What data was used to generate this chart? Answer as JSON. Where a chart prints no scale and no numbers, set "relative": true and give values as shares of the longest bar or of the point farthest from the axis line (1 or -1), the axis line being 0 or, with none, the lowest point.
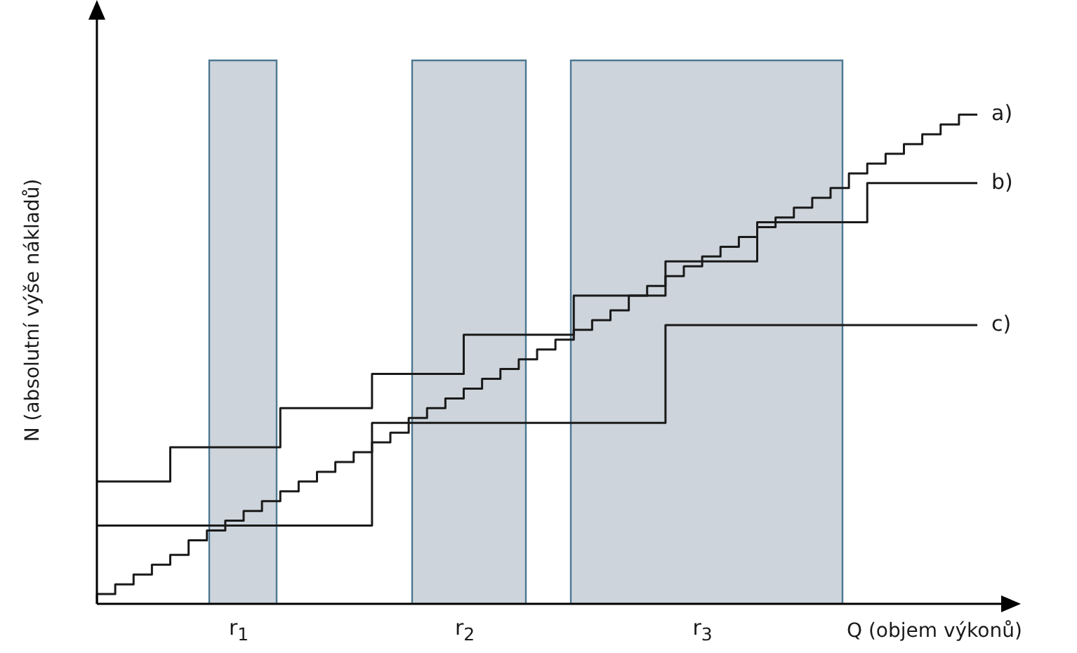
{
  "chart_data": {
    "type": "step",
    "relative": true,
    "xlabel": "Q (objem výkonů)",
    "ylabel": "N (absolutní výše nákladů)",
    "legend": false,
    "marker": "none",
    "line_style": "solid",
    "categories": [
      null,
      null,
      null,
      null,
      null,
      null,
      null,
      null,
      null,
      null,
      null,
      null,
      null,
      null,
      null,
      null,
      null,
      null,
      null,
      null,
      null,
      null,
      null,
      null,
      null,
      null,
      null,
      null,
      null,
      null,
      null,
      null,
      null,
      null,
      null,
      null,
      null,
      null,
      null,
      null,
      null,
      null,
      null,
      null,
      null,
      null,
      null,
      null,
      null
    ],
    "series": [
      {
        "name": "a)",
        "color": "#1a1a1a",
        "values": [
          0,
          0.02,
          0.04,
          0.06,
          0.08,
          0.1,
          0.13,
          0.15,
          0.17,
          0.19,
          0.21,
          0.23,
          0.25,
          0.27,
          0.29,
          0.31,
          0.33,
          0.35,
          0.38,
          0.4,
          0.42,
          0.44,
          0.46,
          0.48,
          0.5,
          0.52,
          0.54,
          0.56,
          0.58,
          0.6,
          0.63,
          0.65,
          0.67,
          0.69,
          0.71,
          0.73,
          0.75,
          0.77,
          0.79,
          0.81,
          0.83,
          0.85,
          0.88,
          0.9,
          0.92,
          0.94,
          0.96,
          0.98,
          1
        ]
      },
      {
        "name": "b)",
        "color": "#1a1a1a",
        "values": [
          0.25,
          0.25,
          0.25,
          0.25,
          0.25,
          0.32,
          0.32,
          0.32,
          0.32,
          0.32,
          0.32,
          0.4,
          0.4,
          0.4,
          0.4,
          0.4,
          0.47,
          0.47,
          0.47,
          0.47,
          0.47,
          0.55,
          0.55,
          0.55,
          0.55,
          0.55,
          0.55,
          0.63,
          0.63,
          0.63,
          0.63,
          0.63,
          0.7,
          0.7,
          0.7,
          0.7,
          0.7,
          0.78,
          0.78,
          0.78,
          0.78,
          0.78,
          0.78,
          0.86,
          0.86,
          0.86,
          0.86,
          0.86,
          0.86
        ]
      },
      {
        "name": "c)",
        "color": "#1a1a1a",
        "values": [
          0.16,
          0.16,
          0.16,
          0.16,
          0.16,
          0.16,
          0.16,
          0.16,
          0.16,
          0.16,
          0.16,
          0.16,
          0.16,
          0.16,
          0.16,
          0.16,
          0.37,
          0.37,
          0.37,
          0.37,
          0.37,
          0.37,
          0.37,
          0.37,
          0.37,
          0.37,
          0.37,
          0.37,
          0.37,
          0.37,
          0.37,
          0.37,
          0.57,
          0.57,
          0.57,
          0.57,
          0.57,
          0.57,
          0.57,
          0.57,
          0.57,
          0.57,
          0.57,
          0.57,
          0.57,
          0.57,
          0.57,
          0.57,
          0.57
        ]
      }
    ],
    "annotations": [
      "r$_{1}$",
      "r$_{2}$",
      "r$_{3}$"
    ]
  }
}
